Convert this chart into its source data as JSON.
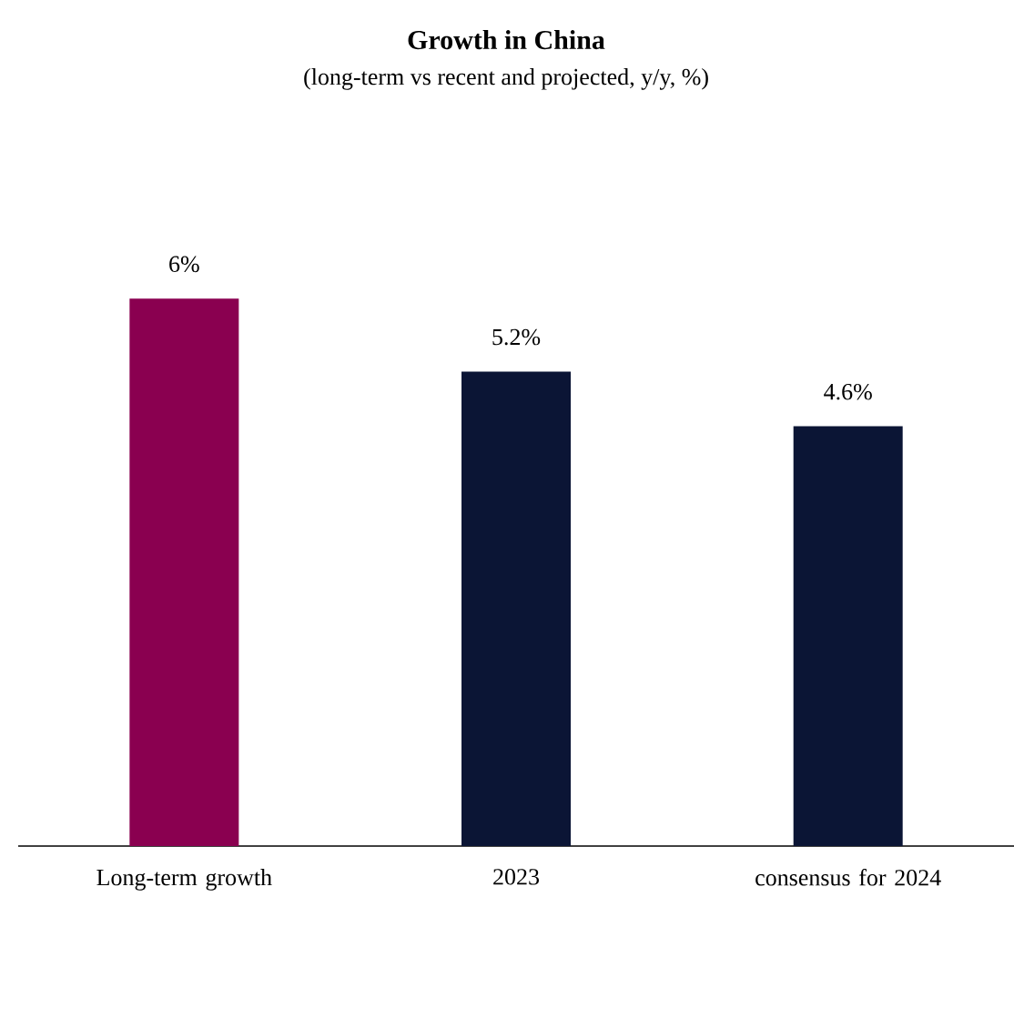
{
  "chart_data": {
    "type": "bar",
    "title": "Growth in China",
    "subtitle": "(long-term vs recent and projected, y/y, %)",
    "categories": [
      "Long-term growth",
      "2023",
      "consensus for 2024"
    ],
    "values": [
      6,
      5.2,
      4.6
    ],
    "value_labels": [
      "6%",
      "5.2%",
      "4.6%"
    ],
    "colors": [
      "#8a0050",
      "#0b1535",
      "#0b1535"
    ]
  }
}
